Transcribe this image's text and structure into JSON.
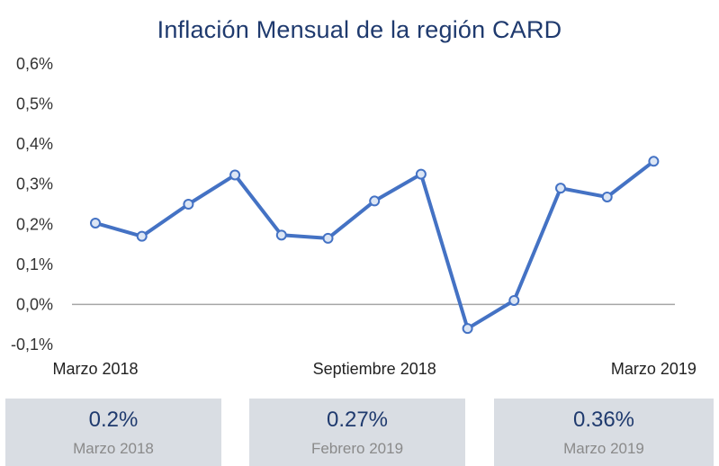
{
  "chart_data": {
    "type": "line",
    "title": "Inflación Mensual de la región CARD",
    "xlabel": "",
    "ylabel": "",
    "ylim": [
      -0.1,
      0.6
    ],
    "y_ticks": [
      "-0,1%",
      "0,0%",
      "0,1%",
      "0,2%",
      "0,3%",
      "0,4%",
      "0,5%",
      "0,6%"
    ],
    "x_tick_labels": [
      {
        "index": 0,
        "label": "Marzo 2018"
      },
      {
        "index": 6,
        "label": "Septiembre 2018"
      },
      {
        "index": 12,
        "label": "Marzo 2019"
      }
    ],
    "grid": false,
    "series": [
      {
        "values": [
          0.203,
          0.17,
          0.25,
          0.323,
          0.173,
          0.165,
          0.258,
          0.325,
          -0.06,
          0.01,
          0.29,
          0.268,
          0.357
        ]
      }
    ],
    "colors": {
      "line": "#4472c4",
      "marker_fill": "#dce6f5",
      "zero_axis": "#a6a6a6"
    }
  },
  "summary_cards": [
    {
      "value": "0.2%",
      "label": "Marzo 2018"
    },
    {
      "value": "0.27%",
      "label": "Febrero 2019"
    },
    {
      "value": "0.36%",
      "label": "Marzo 2019"
    }
  ]
}
